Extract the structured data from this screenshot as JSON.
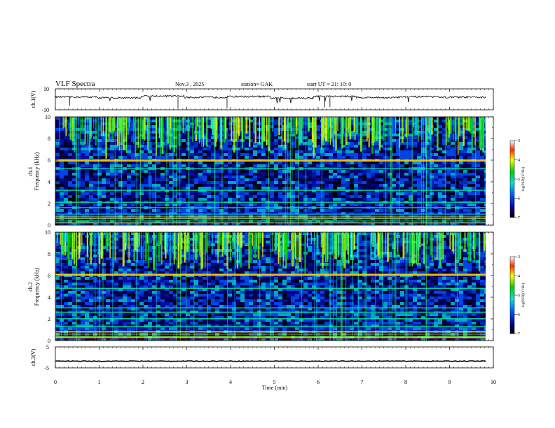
{
  "header": {
    "title": "VLF  Spectra",
    "date": "Nov.3   , 2025",
    "station": "station= GAK",
    "start": "start  UT  =    21: 10: 0"
  },
  "chart_data": [
    {
      "type": "line",
      "panel": "ch1-waveform",
      "ylabel": "ch.1(V)",
      "ylim": [
        -10,
        10
      ],
      "yticks": [
        "10",
        "-10"
      ],
      "series": [
        {
          "values": [
            2.2,
            1.4,
            3.1,
            1.9,
            2.6,
            1.2,
            2.8,
            1.7,
            2.4,
            2.0
          ]
        }
      ]
    },
    {
      "type": "heatmap",
      "panel": "ch1-spectrogram",
      "ylabel": "ch.1\nFrequency  (kHz)",
      "ylim": [
        0,
        10
      ],
      "yticks": [
        "0",
        "2",
        "4",
        "6",
        "8",
        "10"
      ],
      "colorbar": {
        "label": "log(PSD)(V²/Hz)",
        "range": [
          -7,
          -3
        ],
        "ticks": [
          "-3",
          "-4",
          "-5",
          "-6",
          "-7"
        ]
      },
      "bands_khz": [
        0.2,
        0.6,
        1.0,
        1.6,
        2.1,
        3.2,
        5.2,
        6.0
      ]
    },
    {
      "type": "heatmap",
      "panel": "ch2-spectrogram",
      "ylabel": "ch.2\nFrequency  (kHz)",
      "ylim": [
        0,
        10
      ],
      "yticks": [
        "0",
        "2",
        "4",
        "6",
        "8",
        "10"
      ],
      "colorbar": {
        "label": "log(PSD)(V²/Hz)",
        "range": [
          -7,
          -3
        ],
        "ticks": [
          "-3",
          "-4",
          "-5",
          "-6",
          "-7"
        ]
      },
      "bands_khz": [
        0.3,
        0.8,
        1.3,
        2.0,
        2.6,
        3.0,
        4.8,
        6.1
      ]
    },
    {
      "type": "line",
      "panel": "ch3-waveform",
      "ylabel": "ch.3(V)",
      "ylim": [
        -5,
        5
      ],
      "yticks": [
        "5",
        "-5"
      ],
      "series": [
        {
          "values": [
            -1.8,
            -1.8,
            -1.8,
            -1.8,
            -1.8,
            -1.8,
            -1.8,
            -1.8,
            -1.8,
            -1.8
          ]
        }
      ]
    }
  ],
  "xaxis": {
    "label": "Time  (min)",
    "range": [
      0,
      10
    ],
    "ticks": [
      "0",
      "1",
      "2",
      "3",
      "4",
      "5",
      "6",
      "7",
      "8",
      "9",
      "10"
    ]
  }
}
